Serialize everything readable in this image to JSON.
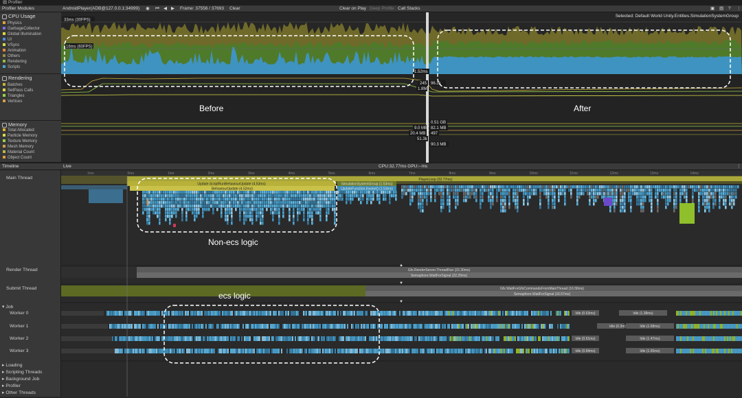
{
  "window": {
    "title": "Profiler"
  },
  "toolbar": {
    "modules_label": "Profiler Modules",
    "target": "AndroidPlayer(ADB@127.0.0.1:34999)",
    "frame": "Frame: 37556 / 37693",
    "clear": "Clear",
    "clear_on_play": "Clear on Play",
    "deep_profile": "Deep Profile",
    "call_stacks": "Call Stacks"
  },
  "selected": "Selected: Default World Unity.Entities.SimulationSystemGroup",
  "cpu": {
    "title": "CPU Usage",
    "legend": [
      {
        "label": "Physics",
        "color": "#e0a33a"
      },
      {
        "label": "GarbageCollector",
        "color": "#7e6be0"
      },
      {
        "label": "Global Illumination",
        "color": "#d9d93f"
      },
      {
        "label": "UI",
        "color": "#4b8dd9"
      },
      {
        "label": "VSync",
        "color": "#d6d94b"
      },
      {
        "label": "Animation",
        "color": "#e28a3a"
      },
      {
        "label": "Others",
        "color": "#9c8b4a"
      },
      {
        "label": "Rendering",
        "color": "#8fc13f"
      },
      {
        "label": "Scripts",
        "color": "#4aa3d1"
      }
    ],
    "label_33": "33ms (30FPS)",
    "label_16": "16ms (60FPS)",
    "readout": "1.52ms"
  },
  "rendering": {
    "title": "Rendering",
    "legend": [
      {
        "label": "Batches",
        "color": "#c9b23a"
      },
      {
        "label": "SetPass Calls",
        "color": "#d9d94b"
      },
      {
        "label": "Triangles",
        "color": "#9bd14b"
      },
      {
        "label": "Vertices",
        "color": "#d1a04b"
      }
    ],
    "readouts": [
      "245",
      "96.3k",
      "1.8M"
    ]
  },
  "memory": {
    "title": "Memory",
    "legend": [
      {
        "label": "Total Allocated",
        "color": "#d9b23a"
      },
      {
        "label": "Particle Memory",
        "color": "#d9d94b"
      },
      {
        "label": "Texture Memory",
        "color": "#9bd14b"
      },
      {
        "label": "Mesh Memory",
        "color": "#d1a04b"
      },
      {
        "label": "Material Count",
        "color": "#b9b94b"
      },
      {
        "label": "Object Count",
        "color": "#d9a03a"
      }
    ],
    "readouts": [
      "0.51 GB",
      "9.0 MB",
      "82.1 MB",
      "20.4 MB",
      "497",
      "51.3k",
      "90.3 MB"
    ]
  },
  "timeline": {
    "title": "Timeline",
    "mode": "Live",
    "cpu_gpu": "CPU:32.77ms   GPU:--ms",
    "threads": [
      {
        "label": "Main Thread"
      },
      {
        "label": "Render Thread"
      },
      {
        "label": "Submit Thread"
      },
      {
        "label": "Job"
      },
      {
        "label": "Worker 0"
      },
      {
        "label": "Worker 1"
      },
      {
        "label": "Worker 2"
      },
      {
        "label": "Worker 3"
      },
      {
        "label": "Loading"
      },
      {
        "label": "Scripting Threads"
      },
      {
        "label": "Background Job"
      },
      {
        "label": "Profiler"
      },
      {
        "label": "Other Threads"
      }
    ],
    "markers": {
      "player_loop": "PlayerLoop (32.77ms)",
      "update_script": "Update.ScriptRunBehaviourUpdate (4.53ms)",
      "behaviour_update": "BehaviourUpdate (4.52ms)",
      "simulation_group": "SimulationSystemGroup (1.53ms)",
      "update_function": "UpdateFunction.Invoke() (1.53ms)",
      "render_thread_run": "Gfx.RenderServer.ThreadRun (22.30ms)",
      "semaphore_render": "Semaphore.WaitForSignal (22.29ms)",
      "gfx_wait": "Gfx.WaitForGfxCommandsFromMainThread (16.58ms)",
      "semaphore_submit": "Semaphore.WaitForSignal (16.57ms)",
      "idle_w0_a": "Idle (0.63ms)",
      "idle_w0_b": "Idle (1.38ms)",
      "idle_w1_a": "Idle (0.3m)",
      "idle_w1_b": "Idle (1.68ms)",
      "idle_w2_a": "Idle (0.61ms)",
      "idle_w2_b": "Idle (1.47ms)",
      "idle_w3_a": "Idle (0.84ms)",
      "idle_w3_b": "Idle (1.65ms)"
    }
  },
  "annotations": {
    "before": "Before",
    "after": "After",
    "non_ecs": "Non-ecs logic",
    "ecs": "ecs logic"
  },
  "ruler": [
    "1ms",
    "0ms",
    "1ms",
    "2ms",
    "3ms",
    "4ms",
    "5ms",
    "6ms",
    "7ms",
    "8ms",
    "9ms",
    "10ms",
    "11ms",
    "12ms",
    "13ms",
    "14ms"
  ]
}
